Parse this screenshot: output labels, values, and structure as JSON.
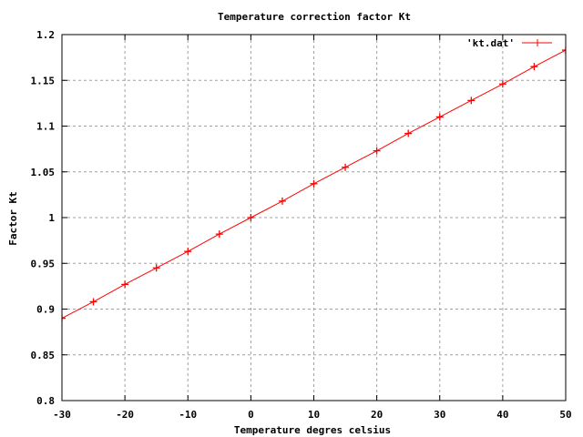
{
  "chart_data": {
    "type": "line",
    "title": "Temperature correction factor Kt",
    "xlabel": "Temperature degres celsius",
    "ylabel": "Factor Kt",
    "xlim": [
      -30,
      50
    ],
    "ylim": [
      0.8,
      1.2
    ],
    "xticks": [
      -30,
      -20,
      -10,
      0,
      10,
      20,
      30,
      40,
      50
    ],
    "xtick_labels": [
      "-30",
      "-20",
      "-10",
      "0",
      "10",
      "20",
      "30",
      "40",
      "50"
    ],
    "yticks": [
      0.8,
      0.85,
      0.9,
      0.95,
      1.0,
      1.05,
      1.1,
      1.15,
      1.2
    ],
    "ytick_labels": [
      "0.8",
      "0.85",
      "0.9",
      "0.95",
      "1",
      "1.05",
      "1.1",
      "1.15",
      "1.2"
    ],
    "grid": true,
    "legend_position": "top-right",
    "series": [
      {
        "name": "'kt.dat'",
        "color": "#ff0000",
        "marker": "plus",
        "x": [
          -30,
          -25,
          -20,
          -15,
          -10,
          -5,
          0,
          5,
          10,
          15,
          20,
          25,
          30,
          35,
          40,
          45,
          50
        ],
        "y": [
          0.89,
          0.908,
          0.927,
          0.945,
          0.963,
          0.982,
          1.0,
          1.018,
          1.037,
          1.055,
          1.073,
          1.092,
          1.11,
          1.128,
          1.146,
          1.165,
          1.183
        ]
      }
    ]
  }
}
